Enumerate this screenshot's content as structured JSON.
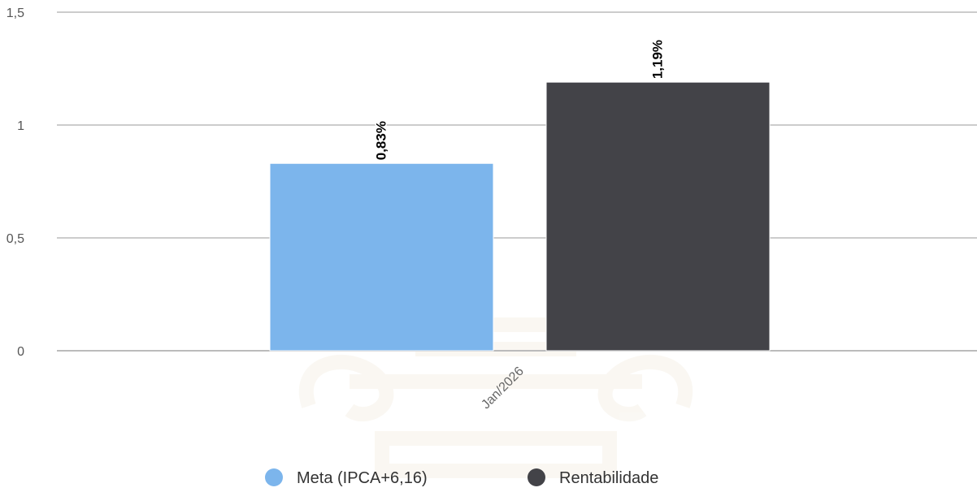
{
  "chart_data": {
    "type": "bar",
    "categories": [
      "Jan/2026"
    ],
    "series": [
      {
        "name": "Meta (IPCA+6,16)",
        "values": [
          0.83
        ],
        "label": "0,83%",
        "color": "#7cb5ec"
      },
      {
        "name": "Rentabilidade",
        "values": [
          1.19
        ],
        "label": "1,19%",
        "color": "#434348"
      }
    ],
    "ylim": [
      0,
      1.5
    ],
    "yticks": [
      {
        "value": 0,
        "label": "0"
      },
      {
        "value": 0.5,
        "label": "0,5"
      },
      {
        "value": 1,
        "label": "1"
      },
      {
        "value": 1.5,
        "label": "1,5"
      }
    ],
    "grid": true,
    "legend_position": "bottom-center",
    "grid_color": "#cccccc"
  }
}
